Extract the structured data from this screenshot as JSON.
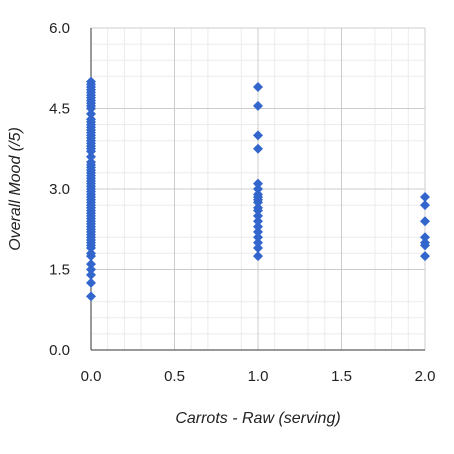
{
  "chart_data": {
    "type": "scatter",
    "title": "",
    "xlabel": "Carrots - Raw (serving)",
    "ylabel": "Overall Mood (/5)",
    "xlim": [
      0,
      2
    ],
    "ylim": [
      0,
      6
    ],
    "x_ticks": [
      "0.0",
      "0.5",
      "1.0",
      "1.5",
      "2.0"
    ],
    "y_ticks": [
      "0.0",
      "1.5",
      "3.0",
      "4.5",
      "6.0"
    ],
    "grid": true,
    "minor_grid": true,
    "legend": "none",
    "marker": "diamond",
    "colors": {
      "series": "#3366CC",
      "major_grid": "#CCCCCC",
      "minor_grid": "#EBEBEB",
      "axis": "#333333"
    },
    "points": [
      [
        0,
        5.0
      ],
      [
        0,
        4.95
      ],
      [
        0,
        4.9
      ],
      [
        0,
        4.85
      ],
      [
        0,
        4.8
      ],
      [
        0,
        4.75
      ],
      [
        0,
        4.7
      ],
      [
        0,
        4.65
      ],
      [
        0,
        4.6
      ],
      [
        0,
        4.55
      ],
      [
        0,
        4.5
      ],
      [
        0,
        4.4
      ],
      [
        0,
        4.3
      ],
      [
        0,
        4.25
      ],
      [
        0,
        4.2
      ],
      [
        0,
        4.15
      ],
      [
        0,
        4.1
      ],
      [
        0,
        4.05
      ],
      [
        0,
        4.0
      ],
      [
        0,
        3.95
      ],
      [
        0,
        3.9
      ],
      [
        0,
        3.85
      ],
      [
        0,
        3.8
      ],
      [
        0,
        3.75
      ],
      [
        0,
        3.7
      ],
      [
        0,
        3.6
      ],
      [
        0,
        3.5
      ],
      [
        0,
        3.45
      ],
      [
        0,
        3.4
      ],
      [
        0,
        3.35
      ],
      [
        0,
        3.3
      ],
      [
        0,
        3.25
      ],
      [
        0,
        3.2
      ],
      [
        0,
        3.15
      ],
      [
        0,
        3.1
      ],
      [
        0,
        3.05
      ],
      [
        0,
        3.0
      ],
      [
        0,
        2.95
      ],
      [
        0,
        2.9
      ],
      [
        0,
        2.85
      ],
      [
        0,
        2.8
      ],
      [
        0,
        2.75
      ],
      [
        0,
        2.7
      ],
      [
        0,
        2.65
      ],
      [
        0,
        2.6
      ],
      [
        0,
        2.55
      ],
      [
        0,
        2.5
      ],
      [
        0,
        2.45
      ],
      [
        0,
        2.4
      ],
      [
        0,
        2.35
      ],
      [
        0,
        2.3
      ],
      [
        0,
        2.25
      ],
      [
        0,
        2.2
      ],
      [
        0,
        2.15
      ],
      [
        0,
        2.1
      ],
      [
        0,
        2.05
      ],
      [
        0,
        2.0
      ],
      [
        0,
        1.95
      ],
      [
        0,
        1.9
      ],
      [
        0,
        1.8
      ],
      [
        0,
        1.75
      ],
      [
        0,
        1.6
      ],
      [
        0,
        1.5
      ],
      [
        0,
        1.4
      ],
      [
        0,
        1.25
      ],
      [
        0,
        1.0
      ],
      [
        1,
        4.9
      ],
      [
        1,
        4.55
      ],
      [
        1,
        4.0
      ],
      [
        1,
        3.75
      ],
      [
        1,
        3.1
      ],
      [
        1,
        3.0
      ],
      [
        1,
        2.9
      ],
      [
        1,
        2.85
      ],
      [
        1,
        2.8
      ],
      [
        1,
        2.75
      ],
      [
        1,
        2.65
      ],
      [
        1,
        2.6
      ],
      [
        1,
        2.5
      ],
      [
        1,
        2.4
      ],
      [
        1,
        2.3
      ],
      [
        1,
        2.2
      ],
      [
        1,
        2.1
      ],
      [
        1,
        2.0
      ],
      [
        1,
        1.9
      ],
      [
        1,
        1.75
      ],
      [
        2,
        2.85
      ],
      [
        2,
        2.7
      ],
      [
        2,
        2.4
      ],
      [
        2,
        2.1
      ],
      [
        2,
        2.0
      ],
      [
        2,
        1.95
      ],
      [
        2,
        1.75
      ]
    ]
  }
}
